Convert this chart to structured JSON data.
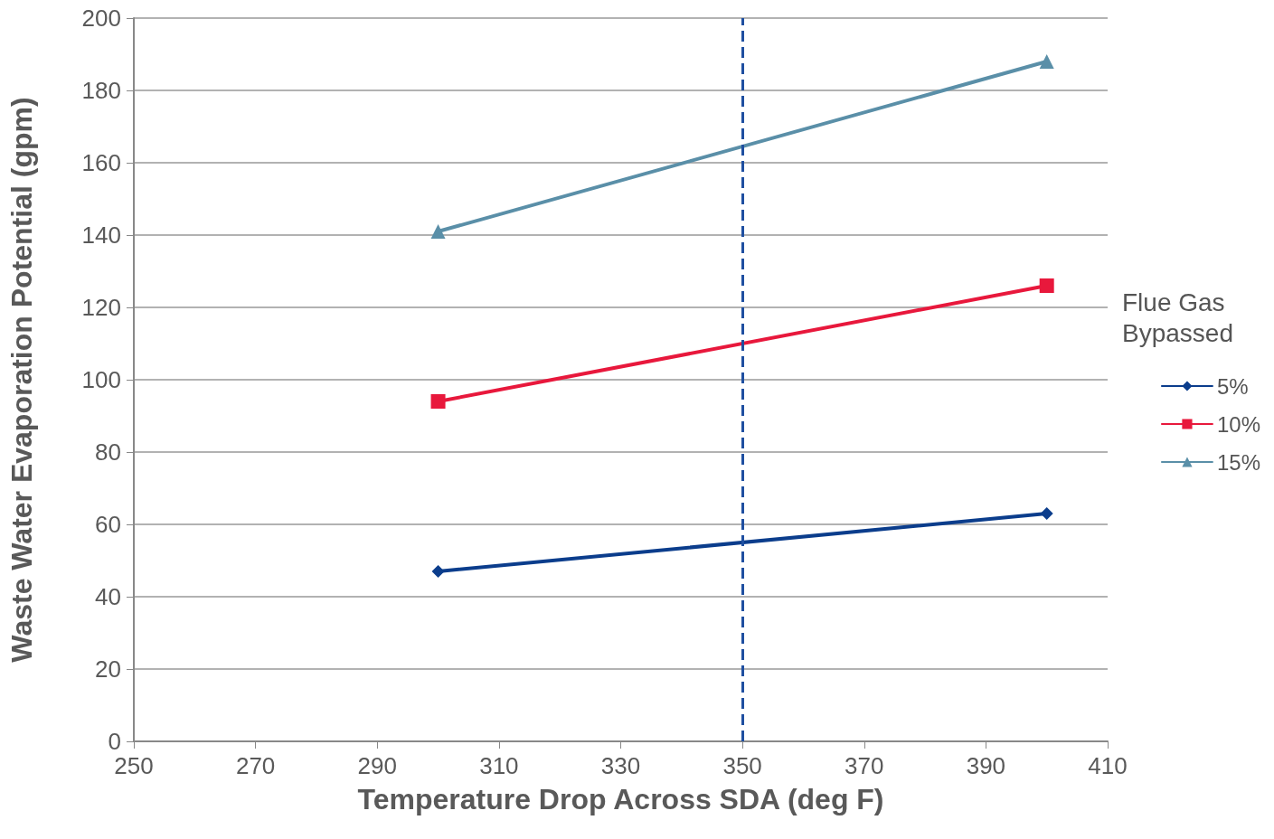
{
  "chart_data": {
    "type": "line",
    "xlabel": "Temperature Drop Across SDA (deg F)",
    "ylabel": "Waste Water Evaporation Potential (gpm)",
    "legend_title": "Flue Gas Bypassed",
    "x": [
      300,
      400
    ],
    "series": [
      {
        "name": "5%",
        "color": "#0b3d8c",
        "values": [
          47,
          63
        ],
        "marker": "diamond"
      },
      {
        "name": "10%",
        "color": "#e8183c",
        "values": [
          94,
          126
        ],
        "marker": "square"
      },
      {
        "name": "15%",
        "color": "#5a8fa8",
        "values": [
          141,
          188
        ],
        "marker": "triangle"
      }
    ],
    "xlim": [
      250,
      410
    ],
    "xticks": [
      250,
      270,
      290,
      310,
      330,
      350,
      370,
      390,
      410
    ],
    "ylim": [
      0,
      200
    ],
    "yticks": [
      0,
      20,
      40,
      60,
      80,
      100,
      120,
      140,
      160,
      180,
      200
    ],
    "grid": "y",
    "legend": "right",
    "line_style": "solid",
    "ref_lines": [
      {
        "axis": "x",
        "value": 350,
        "color": "#1f4fa0",
        "line_style": "dashed"
      }
    ]
  }
}
